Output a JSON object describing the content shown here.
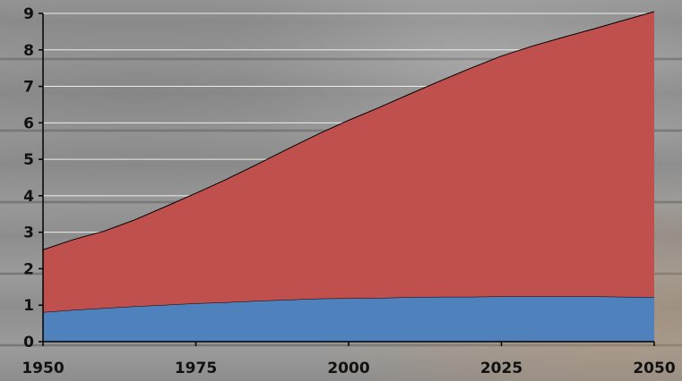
{
  "chart_data": {
    "type": "area",
    "stacked": true,
    "title": "",
    "xlabel": "",
    "ylabel": "",
    "x": [
      1950,
      1955,
      1960,
      1965,
      1970,
      1975,
      1980,
      1985,
      1990,
      1995,
      2000,
      2005,
      2010,
      2015,
      2020,
      2025,
      2030,
      2035,
      2040,
      2045,
      2050
    ],
    "xlim": [
      1950,
      2050
    ],
    "ylim": [
      0,
      9
    ],
    "xticks": [
      "1950",
      "1975",
      "2000",
      "2025",
      "2050"
    ],
    "yticks": [
      "0",
      "1",
      "2",
      "3",
      "4",
      "5",
      "6",
      "7",
      "8",
      "9"
    ],
    "grid": true,
    "legend": "none",
    "series": [
      {
        "color": "#4f81bd",
        "values": [
          0.81,
          0.87,
          0.92,
          0.97,
          1.01,
          1.05,
          1.08,
          1.12,
          1.15,
          1.18,
          1.19,
          1.2,
          1.22,
          1.23,
          1.23,
          1.24,
          1.24,
          1.24,
          1.24,
          1.23,
          1.22
        ]
      },
      {
        "color": "#c0504d",
        "values": [
          1.71,
          1.93,
          2.11,
          2.37,
          2.69,
          3.02,
          3.37,
          3.74,
          4.13,
          4.51,
          4.88,
          5.22,
          5.57,
          5.92,
          6.27,
          6.59,
          6.86,
          7.1,
          7.33,
          7.58,
          7.83
        ]
      }
    ],
    "totals": [
      2.52,
      2.8,
      3.03,
      3.34,
      3.7,
      4.07,
      4.45,
      4.86,
      5.28,
      5.69,
      6.07,
      6.42,
      6.79,
      7.15,
      7.5,
      7.83,
      8.1,
      8.34,
      8.57,
      8.81,
      9.05
    ]
  }
}
